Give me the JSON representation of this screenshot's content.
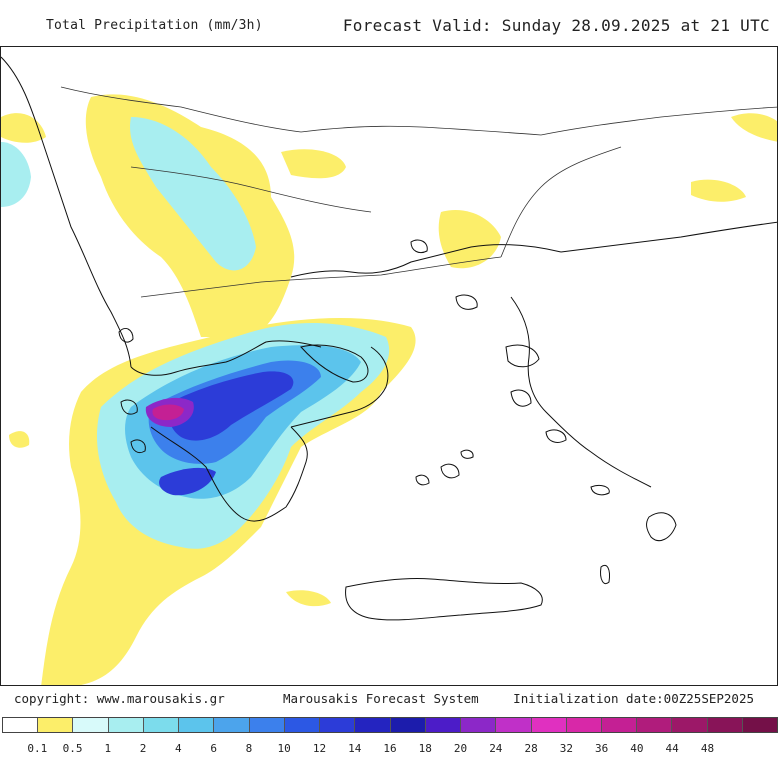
{
  "header": {
    "title": "Total Precipitation (mm/3h)",
    "valid": "Forecast Valid:  Sunday 28.09.2025 at 21 UTC"
  },
  "footer": {
    "copyright": "copyright: www.marousakis.gr",
    "system": "Marousakis Forecast System",
    "init": "Initialization date:00Z25SEP2025"
  },
  "legend": {
    "colors": [
      "#ffffff",
      "#fcee6a",
      "#d8fafa",
      "#a8eef0",
      "#7cdcec",
      "#5cc4ec",
      "#4ca4ec",
      "#3c80ec",
      "#2c58e4",
      "#2c3cd8",
      "#2424c0",
      "#1c1cac",
      "#4c1cc8",
      "#8c28c8",
      "#c030c8",
      "#e030c0",
      "#d828a8",
      "#c42094",
      "#b01c7c",
      "#9c1868",
      "#881458",
      "#741048"
    ],
    "labels": [
      "0.1",
      "0.5",
      "1",
      "2",
      "4",
      "6",
      "8",
      "10",
      "12",
      "14",
      "16",
      "18",
      "20",
      "24",
      "28",
      "32",
      "36",
      "40",
      "44",
      "48"
    ]
  },
  "map": {
    "precip_colors": {
      "yellow": "#fcee6a",
      "pale_cyan": "#d8fafa",
      "cyan": "#a8eef0",
      "mid_blue": "#5cc4ec",
      "blue": "#3c80ec",
      "deep_blue": "#2c3cd8",
      "dark_blue": "#2424c0",
      "purple": "#8c28c8",
      "magenta": "#c42094"
    }
  }
}
